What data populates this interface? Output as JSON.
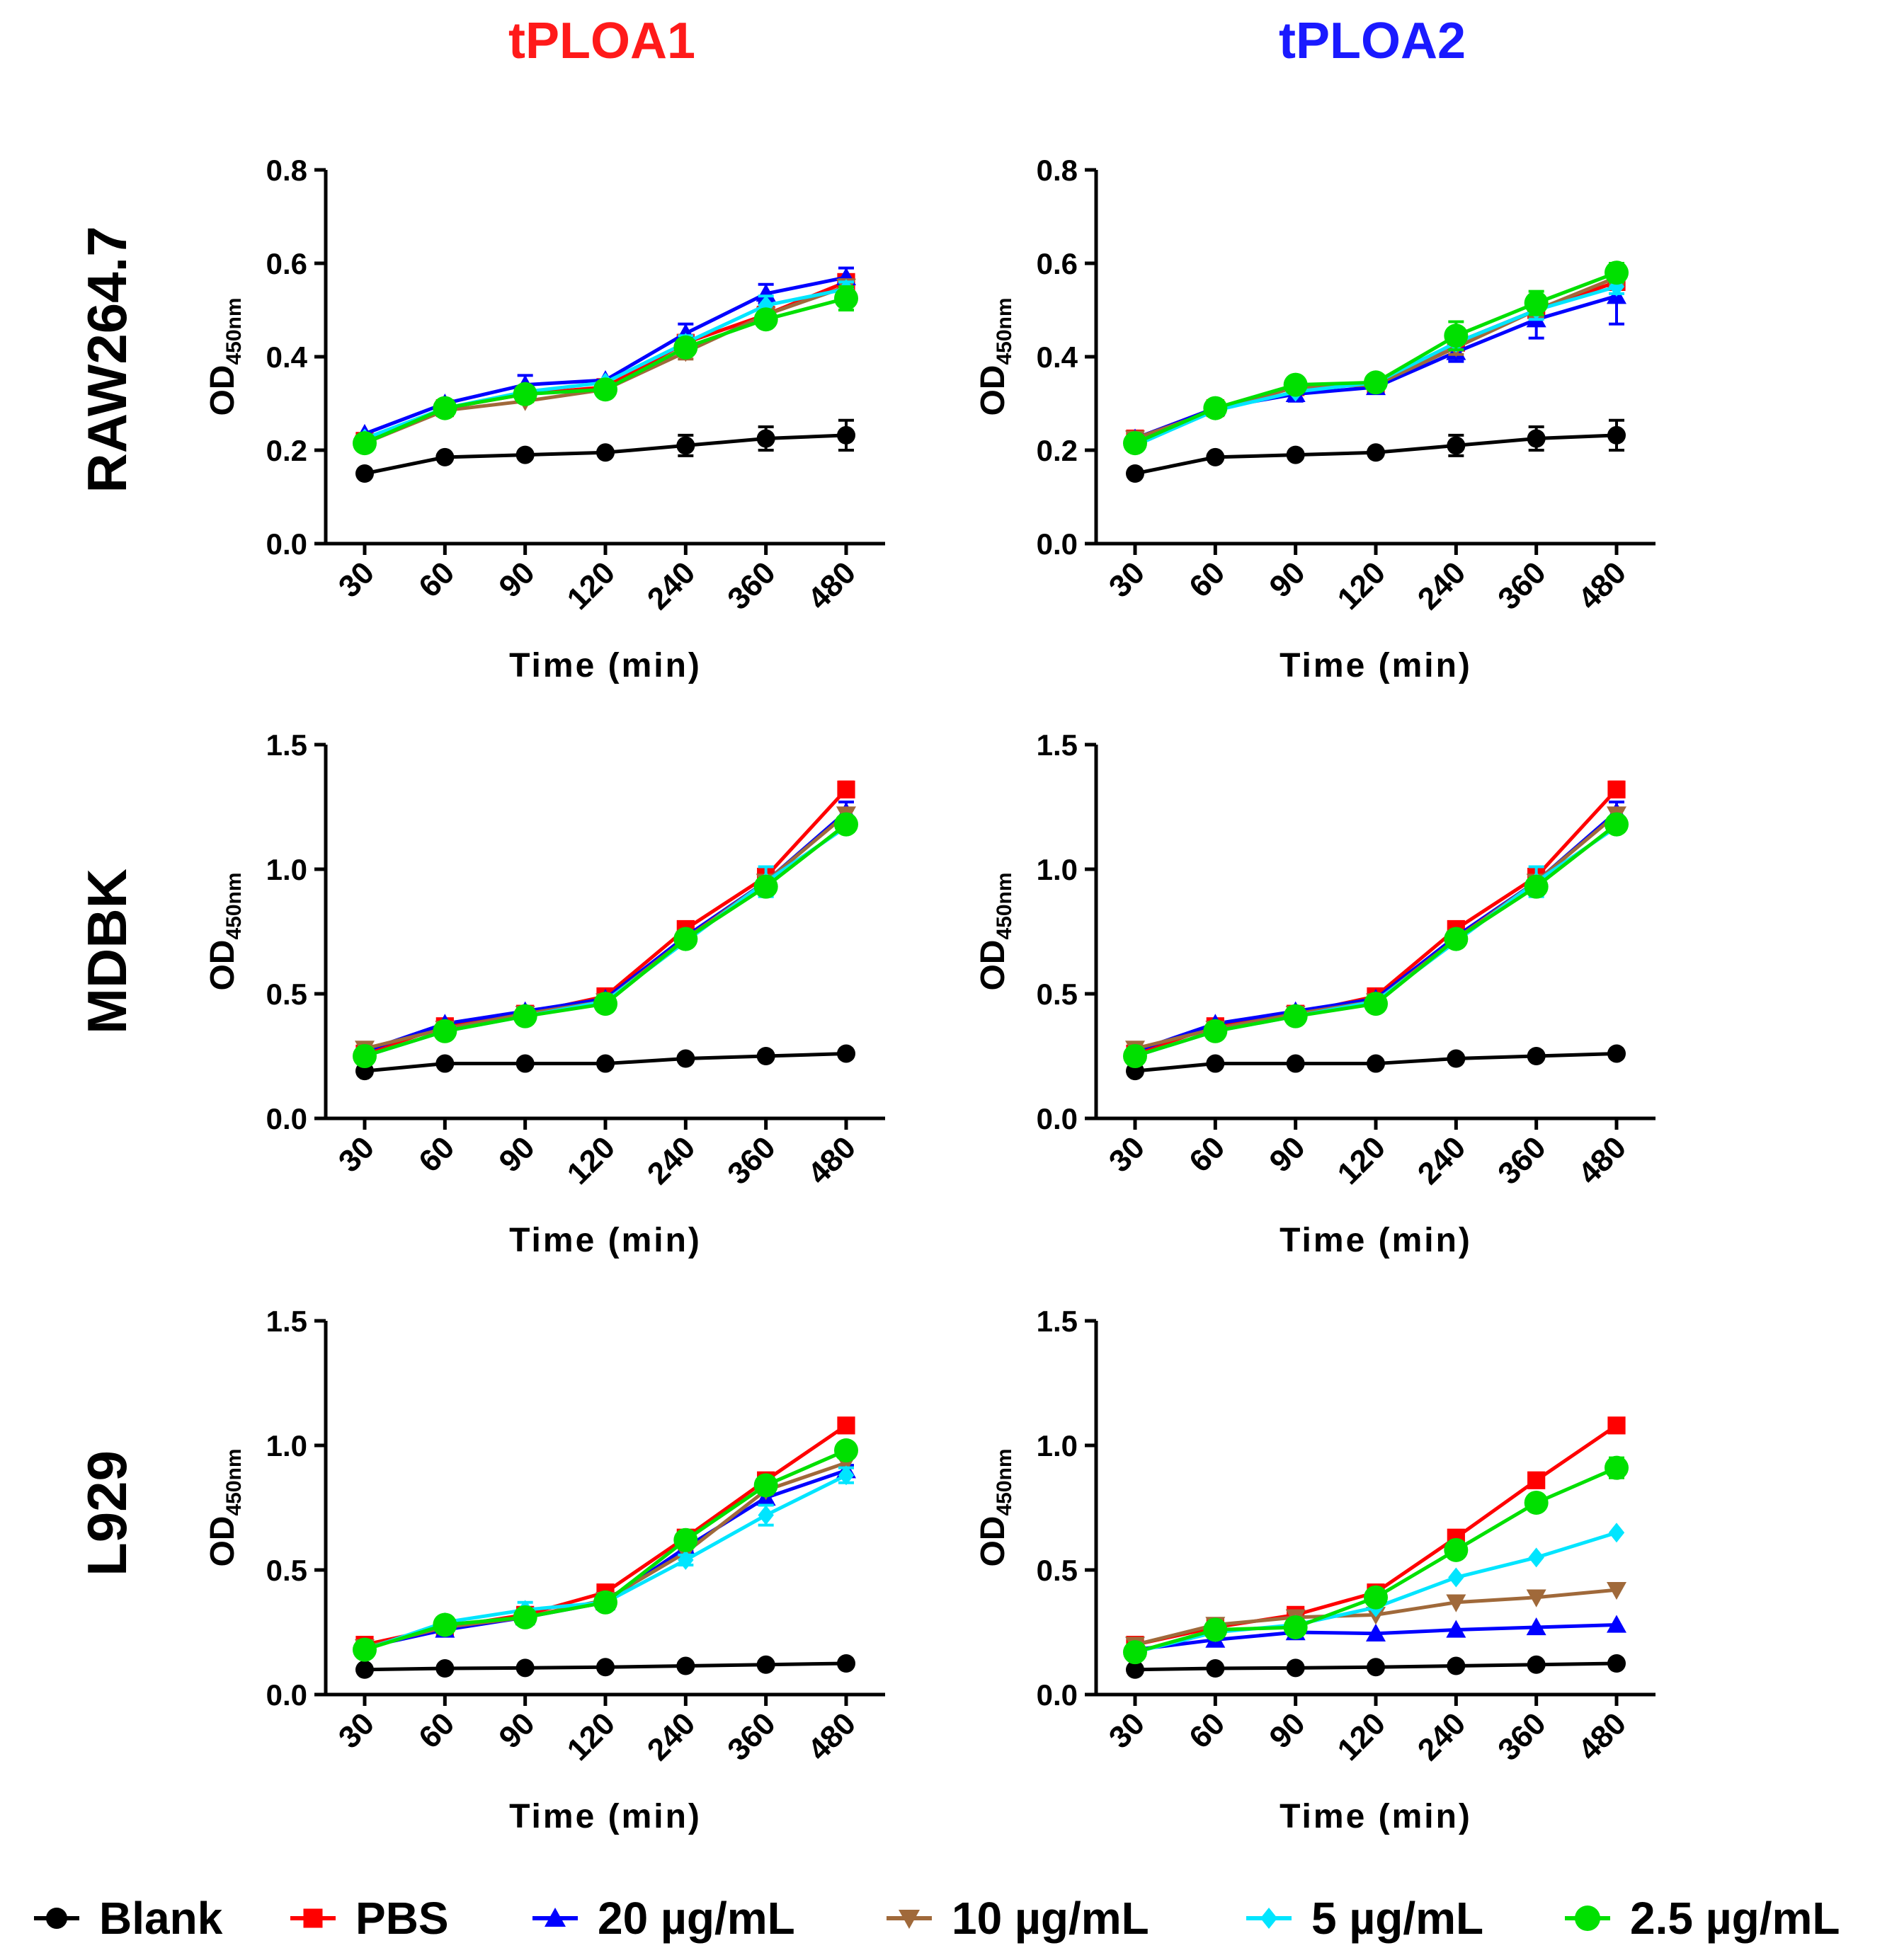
{
  "figure": {
    "column_titles": [
      {
        "text": "tPLOA1",
        "color": "#ff1a1a"
      },
      {
        "text": "tPLOA2",
        "color": "#1a1aff"
      }
    ],
    "row_titles": [
      "RAW264.7",
      "MDBK",
      "L929"
    ]
  },
  "legend": {
    "items": [
      {
        "series": "Blank",
        "label": "Blank",
        "color": "#000000",
        "marker": "circle"
      },
      {
        "series": "PBS",
        "label": "PBS",
        "color": "#ff0000",
        "marker": "square"
      },
      {
        "series": "20",
        "label": "20 µg/mL",
        "color": "#0000ff",
        "marker": "triangle-up"
      },
      {
        "series": "10",
        "label": "10 µg/mL",
        "color": "#a0693a",
        "marker": "triangle-down"
      },
      {
        "series": "5",
        "label": "5 µg/mL",
        "color": "#00e5ff",
        "marker": "diamond"
      },
      {
        "series": "2.5",
        "label": "2.5 µg/mL",
        "color": "#00e000",
        "marker": "circle"
      }
    ]
  },
  "chart_data": [
    {
      "id": "raw-tploa1",
      "row": "RAW264.7",
      "column": "tPLOA1",
      "type": "line",
      "xlabel": "Time (min)",
      "ylabel": "OD",
      "ylabel_sub": "450nm",
      "categories": [
        "30",
        "60",
        "90",
        "120",
        "240",
        "360",
        "480"
      ],
      "ylim": [
        0,
        0.8
      ],
      "yticks": [
        "0.0",
        "0.2",
        "0.4",
        "0.6",
        "0.8"
      ],
      "ytick_values": [
        0,
        0.2,
        0.4,
        0.6,
        0.8
      ],
      "series": [
        {
          "name": "Blank",
          "values": [
            0.15,
            0.185,
            0.19,
            0.195,
            0.21,
            0.225,
            0.232
          ],
          "errors": [
            0.005,
            0.008,
            0.008,
            0.008,
            0.022,
            0.025,
            0.032
          ]
        },
        {
          "name": "PBS",
          "values": [
            0.22,
            0.29,
            0.32,
            0.335,
            0.43,
            0.49,
            0.56
          ],
          "errors": [
            0.01,
            0.01,
            0.01,
            0.01,
            0.015,
            0.015,
            0.015
          ]
        },
        {
          "name": "20",
          "values": [
            0.235,
            0.3,
            0.34,
            0.35,
            0.45,
            0.535,
            0.57
          ],
          "errors": [
            0.008,
            0.01,
            0.02,
            0.01,
            0.02,
            0.02,
            0.02
          ]
        },
        {
          "name": "10",
          "values": [
            0.215,
            0.285,
            0.305,
            0.33,
            0.41,
            0.49,
            0.55
          ],
          "errors": [
            0.008,
            0.01,
            0.01,
            0.01,
            0.015,
            0.015,
            0.015
          ]
        },
        {
          "name": "5",
          "values": [
            0.225,
            0.29,
            0.325,
            0.345,
            0.43,
            0.51,
            0.545
          ],
          "errors": [
            0.008,
            0.01,
            0.01,
            0.01,
            0.015,
            0.02,
            0.015
          ]
        },
        {
          "name": "2.5",
          "values": [
            0.215,
            0.29,
            0.32,
            0.33,
            0.42,
            0.48,
            0.525
          ],
          "errors": [
            0.008,
            0.01,
            0.01,
            0.01,
            0.015,
            0.015,
            0.025
          ]
        }
      ]
    },
    {
      "id": "raw-tploa2",
      "row": "RAW264.7",
      "column": "tPLOA2",
      "type": "line",
      "xlabel": "Time (min)",
      "ylabel": "OD",
      "ylabel_sub": "450nm",
      "categories": [
        "30",
        "60",
        "90",
        "120",
        "240",
        "360",
        "480"
      ],
      "ylim": [
        0,
        0.8
      ],
      "yticks": [
        "0.0",
        "0.2",
        "0.4",
        "0.6",
        "0.8"
      ],
      "ytick_values": [
        0,
        0.2,
        0.4,
        0.6,
        0.8
      ],
      "series": [
        {
          "name": "Blank",
          "values": [
            0.15,
            0.185,
            0.19,
            0.195,
            0.21,
            0.225,
            0.232
          ],
          "errors": [
            0.005,
            0.008,
            0.008,
            0.008,
            0.022,
            0.025,
            0.032
          ]
        },
        {
          "name": "PBS",
          "values": [
            0.225,
            0.29,
            0.335,
            0.34,
            0.43,
            0.5,
            0.56
          ],
          "errors": [
            0.01,
            0.01,
            0.01,
            0.01,
            0.015,
            0.015,
            0.015
          ]
        },
        {
          "name": "20",
          "values": [
            0.225,
            0.29,
            0.32,
            0.335,
            0.41,
            0.48,
            0.53
          ],
          "errors": [
            0.008,
            0.01,
            0.015,
            0.01,
            0.02,
            0.04,
            0.06
          ]
        },
        {
          "name": "10",
          "values": [
            0.225,
            0.285,
            0.335,
            0.34,
            0.42,
            0.5,
            0.57
          ],
          "errors": [
            0.008,
            0.01,
            0.01,
            0.01,
            0.015,
            0.015,
            0.015
          ]
        },
        {
          "name": "5",
          "values": [
            0.21,
            0.285,
            0.325,
            0.345,
            0.43,
            0.5,
            0.55
          ],
          "errors": [
            0.008,
            0.01,
            0.01,
            0.01,
            0.015,
            0.02,
            0.015
          ]
        },
        {
          "name": "2.5",
          "values": [
            0.215,
            0.29,
            0.34,
            0.345,
            0.445,
            0.515,
            0.58
          ],
          "errors": [
            0.008,
            0.01,
            0.015,
            0.01,
            0.03,
            0.025,
            0.02
          ]
        }
      ]
    },
    {
      "id": "mdbk-tploa1",
      "row": "MDBK",
      "column": "tPLOA1",
      "type": "line",
      "xlabel": "Time (min)",
      "ylabel": "OD",
      "ylabel_sub": "450nm",
      "categories": [
        "30",
        "60",
        "90",
        "120",
        "240",
        "360",
        "480"
      ],
      "ylim": [
        0,
        1.5
      ],
      "yticks": [
        "0.0",
        "0.5",
        "1.0",
        "1.5"
      ],
      "ytick_values": [
        0,
        0.5,
        1.0,
        1.5
      ],
      "series": [
        {
          "name": "Blank",
          "values": [
            0.19,
            0.22,
            0.22,
            0.22,
            0.24,
            0.25,
            0.26
          ],
          "errors": [
            0.005,
            0.005,
            0.005,
            0.005,
            0.005,
            0.005,
            0.005
          ]
        },
        {
          "name": "PBS",
          "values": [
            0.26,
            0.37,
            0.42,
            0.49,
            0.76,
            0.97,
            1.32
          ],
          "errors": [
            0.01,
            0.01,
            0.01,
            0.01,
            0.015,
            0.015,
            0.03
          ]
        },
        {
          "name": "20",
          "values": [
            0.27,
            0.38,
            0.43,
            0.48,
            0.73,
            0.95,
            1.23
          ],
          "errors": [
            0.01,
            0.01,
            0.01,
            0.01,
            0.015,
            0.02,
            0.04
          ]
        },
        {
          "name": "10",
          "values": [
            0.28,
            0.36,
            0.42,
            0.47,
            0.72,
            0.95,
            1.22
          ],
          "errors": [
            0.01,
            0.01,
            0.01,
            0.01,
            0.015,
            0.02,
            0.02
          ]
        },
        {
          "name": "5",
          "values": [
            0.25,
            0.35,
            0.41,
            0.47,
            0.71,
            0.95,
            1.17
          ],
          "errors": [
            0.01,
            0.01,
            0.01,
            0.01,
            0.02,
            0.06,
            0.02
          ]
        },
        {
          "name": "2.5",
          "values": [
            0.25,
            0.35,
            0.41,
            0.46,
            0.72,
            0.93,
            1.18
          ],
          "errors": [
            0.01,
            0.01,
            0.01,
            0.01,
            0.015,
            0.015,
            0.02
          ]
        }
      ]
    },
    {
      "id": "mdbk-tploa2",
      "row": "MDBK",
      "column": "tPLOA2",
      "type": "line",
      "xlabel": "Time (min)",
      "ylabel": "OD",
      "ylabel_sub": "450nm",
      "categories": [
        "30",
        "60",
        "90",
        "120",
        "240",
        "360",
        "480"
      ],
      "ylim": [
        0,
        1.5
      ],
      "yticks": [
        "0.0",
        "0.5",
        "1.0",
        "1.5"
      ],
      "ytick_values": [
        0,
        0.5,
        1.0,
        1.5
      ],
      "series": [
        {
          "name": "Blank",
          "values": [
            0.19,
            0.22,
            0.22,
            0.22,
            0.24,
            0.25,
            0.26
          ],
          "errors": [
            0.005,
            0.005,
            0.005,
            0.005,
            0.005,
            0.005,
            0.005
          ]
        },
        {
          "name": "PBS",
          "values": [
            0.26,
            0.37,
            0.42,
            0.49,
            0.76,
            0.97,
            1.32
          ],
          "errors": [
            0.01,
            0.01,
            0.01,
            0.01,
            0.015,
            0.015,
            0.03
          ]
        },
        {
          "name": "20",
          "values": [
            0.27,
            0.38,
            0.43,
            0.48,
            0.73,
            0.95,
            1.23
          ],
          "errors": [
            0.01,
            0.01,
            0.01,
            0.01,
            0.015,
            0.02,
            0.04
          ]
        },
        {
          "name": "10",
          "values": [
            0.28,
            0.36,
            0.42,
            0.47,
            0.72,
            0.95,
            1.22
          ],
          "errors": [
            0.01,
            0.01,
            0.01,
            0.01,
            0.015,
            0.02,
            0.02
          ]
        },
        {
          "name": "5",
          "values": [
            0.25,
            0.35,
            0.41,
            0.47,
            0.71,
            0.95,
            1.17
          ],
          "errors": [
            0.01,
            0.01,
            0.01,
            0.01,
            0.02,
            0.06,
            0.02
          ]
        },
        {
          "name": "2.5",
          "values": [
            0.25,
            0.35,
            0.41,
            0.46,
            0.72,
            0.93,
            1.18
          ],
          "errors": [
            0.01,
            0.01,
            0.01,
            0.01,
            0.015,
            0.015,
            0.02
          ]
        }
      ]
    },
    {
      "id": "l929-tploa1",
      "row": "L929",
      "column": "tPLOA1",
      "type": "line",
      "xlabel": "Time (min)",
      "ylabel": "OD",
      "ylabel_sub": "450nm",
      "categories": [
        "30",
        "60",
        "90",
        "120",
        "240",
        "360",
        "480"
      ],
      "ylim": [
        0,
        1.5
      ],
      "yticks": [
        "0.0",
        "0.5",
        "1.0",
        "1.5"
      ],
      "ytick_values": [
        0,
        0.5,
        1.0,
        1.5
      ],
      "series": [
        {
          "name": "Blank",
          "values": [
            0.1,
            0.105,
            0.107,
            0.11,
            0.115,
            0.12,
            0.125
          ],
          "errors": [
            0.005,
            0.005,
            0.005,
            0.005,
            0.005,
            0.005,
            0.005
          ]
        },
        {
          "name": "PBS",
          "values": [
            0.2,
            0.27,
            0.32,
            0.41,
            0.63,
            0.86,
            1.08
          ],
          "errors": [
            0.01,
            0.01,
            0.01,
            0.01,
            0.015,
            0.015,
            0.015
          ]
        },
        {
          "name": "20",
          "values": [
            0.19,
            0.26,
            0.31,
            0.37,
            0.59,
            0.79,
            0.9
          ],
          "errors": [
            0.01,
            0.01,
            0.01,
            0.01,
            0.015,
            0.02,
            0.02
          ]
        },
        {
          "name": "10",
          "values": [
            0.19,
            0.27,
            0.31,
            0.38,
            0.57,
            0.82,
            0.93
          ],
          "errors": [
            0.01,
            0.01,
            0.01,
            0.01,
            0.015,
            0.015,
            0.02
          ]
        },
        {
          "name": "5",
          "values": [
            0.18,
            0.29,
            0.34,
            0.37,
            0.54,
            0.72,
            0.88
          ],
          "errors": [
            0.01,
            0.01,
            0.03,
            0.01,
            0.02,
            0.04,
            0.03
          ]
        },
        {
          "name": "2.5",
          "values": [
            0.18,
            0.28,
            0.31,
            0.37,
            0.62,
            0.84,
            0.98
          ],
          "errors": [
            0.01,
            0.01,
            0.01,
            0.01,
            0.015,
            0.015,
            0.03
          ]
        }
      ]
    },
    {
      "id": "l929-tploa2",
      "row": "L929",
      "column": "tPLOA2",
      "type": "line",
      "xlabel": "Time (min)",
      "ylabel": "OD",
      "ylabel_sub": "450nm",
      "categories": [
        "30",
        "60",
        "90",
        "120",
        "240",
        "360",
        "480"
      ],
      "ylim": [
        0,
        1.5
      ],
      "yticks": [
        "0.0",
        "0.5",
        "1.0",
        "1.5"
      ],
      "ytick_values": [
        0,
        0.5,
        1.0,
        1.5
      ],
      "series": [
        {
          "name": "Blank",
          "values": [
            0.1,
            0.105,
            0.107,
            0.11,
            0.115,
            0.12,
            0.125
          ],
          "errors": [
            0.005,
            0.005,
            0.005,
            0.005,
            0.005,
            0.005,
            0.005
          ]
        },
        {
          "name": "PBS",
          "values": [
            0.2,
            0.27,
            0.32,
            0.41,
            0.63,
            0.86,
            1.08
          ],
          "errors": [
            0.01,
            0.01,
            0.01,
            0.01,
            0.015,
            0.015,
            0.015
          ]
        },
        {
          "name": "20",
          "values": [
            0.18,
            0.22,
            0.25,
            0.245,
            0.26,
            0.27,
            0.28
          ],
          "errors": [
            0.01,
            0.01,
            0.01,
            0.01,
            0.01,
            0.01,
            0.01
          ]
        },
        {
          "name": "10",
          "values": [
            0.2,
            0.28,
            0.31,
            0.32,
            0.37,
            0.39,
            0.42
          ],
          "errors": [
            0.01,
            0.01,
            0.01,
            0.01,
            0.01,
            0.01,
            0.01
          ]
        },
        {
          "name": "5",
          "values": [
            0.17,
            0.25,
            0.28,
            0.35,
            0.47,
            0.55,
            0.65
          ],
          "errors": [
            0.01,
            0.01,
            0.01,
            0.01,
            0.01,
            0.01,
            0.01
          ]
        },
        {
          "name": "2.5",
          "values": [
            0.17,
            0.26,
            0.27,
            0.39,
            0.58,
            0.77,
            0.91
          ],
          "errors": [
            0.01,
            0.01,
            0.01,
            0.02,
            0.02,
            0.015,
            0.04
          ]
        }
      ]
    }
  ]
}
